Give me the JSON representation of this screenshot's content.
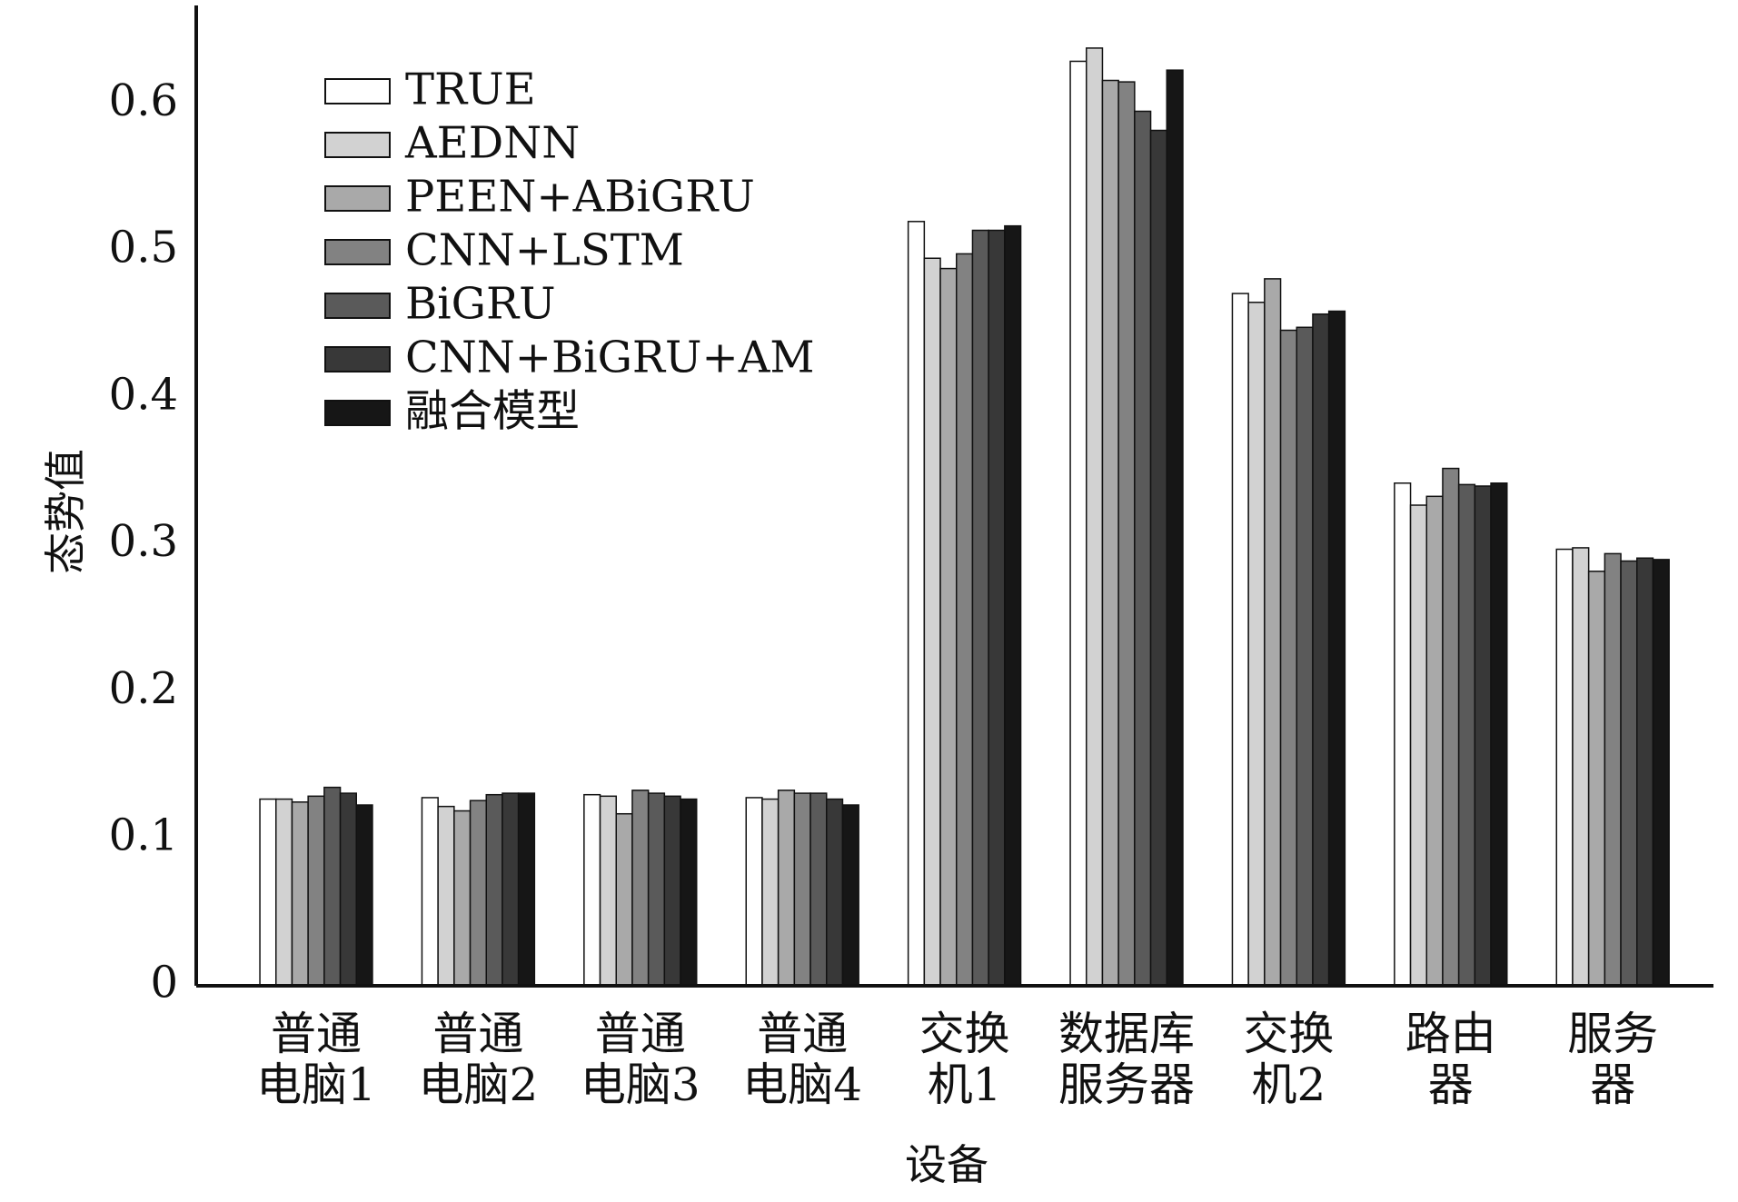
{
  "chart_data": {
    "type": "bar",
    "x_label": "设备",
    "y_label": "态势值",
    "categories": [
      [
        "普通",
        "电脑1"
      ],
      [
        "普通",
        "电脑2"
      ],
      [
        "普通",
        "电脑3"
      ],
      [
        "普通",
        "电脑4"
      ],
      [
        "交换",
        "机1"
      ],
      [
        "数据库",
        "服务器"
      ],
      [
        "交换",
        "机2"
      ],
      [
        "路由",
        "器"
      ],
      [
        "服务",
        "器"
      ]
    ],
    "series": [
      {
        "name": "TRUE",
        "color": "#ffffff",
        "values": [
          0.127,
          0.128,
          0.13,
          0.128,
          0.52,
          0.629,
          0.471,
          0.342,
          0.297
        ]
      },
      {
        "name": "AEDNN",
        "color": "#d2d2d2",
        "values": [
          0.127,
          0.122,
          0.129,
          0.127,
          0.495,
          0.638,
          0.465,
          0.327,
          0.298
        ]
      },
      {
        "name": "PEEN+ABiGRU",
        "color": "#a9a9a9",
        "values": [
          0.125,
          0.119,
          0.117,
          0.133,
          0.488,
          0.616,
          0.481,
          0.333,
          0.282
        ]
      },
      {
        "name": "CNN+LSTM",
        "color": "#828282",
        "values": [
          0.129,
          0.126,
          0.133,
          0.131,
          0.498,
          0.615,
          0.446,
          0.352,
          0.294
        ]
      },
      {
        "name": "BiGRU",
        "color": "#5a5a5a",
        "values": [
          0.135,
          0.13,
          0.131,
          0.131,
          0.514,
          0.595,
          0.448,
          0.341,
          0.289
        ]
      },
      {
        "name": "CNN+BiGRU+AM",
        "color": "#383838",
        "values": [
          0.131,
          0.131,
          0.129,
          0.127,
          0.514,
          0.582,
          0.457,
          0.34,
          0.291
        ]
      },
      {
        "name": "融合模型",
        "color": "#161616",
        "values": [
          0.123,
          0.131,
          0.127,
          0.123,
          0.517,
          0.623,
          0.459,
          0.342,
          0.29
        ]
      }
    ],
    "ylim": [
      0,
      0.667
    ],
    "yticks": [
      0,
      0.1,
      0.2,
      0.3,
      0.4,
      0.5,
      0.6
    ],
    "legend": "upper-left"
  }
}
